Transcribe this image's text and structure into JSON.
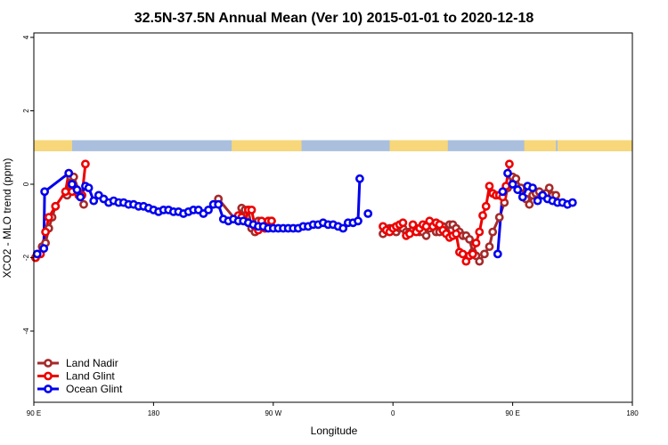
{
  "chart_data": {
    "type": "line",
    "title": "32.5N-37.5N Annual Mean (Ver 10)   2015-01-01 to 2020-12-18",
    "xlabel": "Longitude",
    "ylabel": "XCO2 - MLO trend (ppm)",
    "xlim": [
      90,
      450
    ],
    "ylim": [
      -6,
      4
    ],
    "x_ticks": [
      {
        "value": 90,
        "label": "90 E"
      },
      {
        "value": 162,
        "label": "180"
      },
      {
        "value": 234,
        "label": "90 W"
      },
      {
        "value": 306,
        "label": "0"
      },
      {
        "value": 378,
        "label": "90 E"
      },
      {
        "value": 450,
        "label": "180"
      }
    ],
    "y_ticks": [
      {
        "value": 4,
        "label": "4"
      },
      {
        "value": 2,
        "label": "2"
      },
      {
        "value": 0,
        "label": "0"
      },
      {
        "value": -2,
        "label": "-2"
      },
      {
        "value": -4,
        "label": "-4"
      }
    ],
    "grid": false,
    "legend_position": "bottom-left",
    "land_mask_band": {
      "y_range": [
        0.9,
        1.2
      ],
      "ocean_color": "#a9bfdd",
      "land_color": "#f7d77a",
      "land_segments": [
        [
          90,
          113
        ],
        [
          209,
          251
        ],
        [
          304,
          339
        ],
        [
          385,
          404
        ],
        [
          405,
          450
        ]
      ]
    },
    "series": [
      {
        "name": "Land Nadir",
        "color": "#a52a2a",
        "x": [
          91,
          93,
          95,
          97,
          99,
          101,
          103,
          110,
          112,
          114,
          120,
          201,
          211,
          213,
          215,
          217,
          219,
          221,
          223,
          225,
          227,
          229,
          233,
          235,
          239,
          242,
          245,
          247,
          249,
          251,
          253,
          255,
          257,
          259,
          261,
          263,
          265,
          267,
          269,
          271,
          273,
          275,
          277,
          279,
          281,
          283,
          285,
          287,
          289,
          290,
          292,
          294,
          296,
          298,
          300,
          302,
          304,
          306,
          308,
          310,
          312,
          314,
          316,
          318,
          320,
          322,
          324,
          326,
          328,
          330,
          332,
          334,
          336,
          338,
          340,
          342,
          344,
          346,
          348,
          350,
          352,
          354,
          356,
          358,
          361,
          364,
          366,
          370,
          373,
          375,
          378,
          380,
          383,
          386,
          388,
          390,
          392,
          394,
          396,
          398,
          400,
          402,
          404
        ],
        "y": [
          -2.0,
          -1.9,
          -1.7,
          -1.6,
          -1.2,
          -0.9,
          -0.6,
          -0.3,
          0.2,
          0.2,
          -0.55,
          -0.4,
          -0.95,
          -1.0,
          -0.65,
          -0.7,
          -0.7,
          -1.2,
          -1.3,
          -1.0,
          -1.1,
          -1.2,
          -1.0,
          -1.0,
          -1.1,
          -1.2,
          -1.1,
          -1.15,
          -1.2,
          -1.3,
          -1.25,
          -1.2,
          -1.3,
          -1.3,
          -1.2,
          -1.3,
          -1.3,
          -1.2,
          -1.3,
          -1.2,
          -1.2,
          -1.2,
          -1.3,
          -1.3,
          -1.2,
          -1.3,
          -1.3,
          -1.4,
          -1.25,
          -1.2,
          -1.2,
          -1.3,
          -1.3,
          -1.3,
          -1.35,
          -1.25,
          -1.2,
          -1.2,
          -1.3,
          -1.2,
          -1.2,
          -1.3,
          -1.3,
          -1.25,
          -1.2,
          -1.3,
          -1.3,
          -1.4,
          -1.2,
          -1.1,
          -1.3,
          -1.3,
          -1.15,
          -1.3,
          -1.1,
          -1.1,
          -1.2,
          -1.3,
          -1.4,
          -1.4,
          -1.5,
          -1.85,
          -1.95,
          -2.1,
          -1.9,
          -1.7,
          -1.3,
          -0.9,
          -0.5,
          -0.1,
          0.2,
          0.15,
          -0.1,
          -0.4,
          -0.55,
          -0.3,
          -0.25,
          -0.2,
          -0.3,
          -0.25,
          -0.1,
          -0.3,
          -0.3
        ],
        "draw_count": 11
      },
      {
        "name": "Land Glint",
        "color": "#ee0000",
        "x": [
          91,
          94,
          97,
          99,
          101,
          103,
          107,
          109,
          111,
          113,
          117,
          119,
          121,
          208,
          210,
          212,
          214,
          216,
          218,
          220,
          222,
          224,
          226,
          228,
          230,
          232,
          300,
          302,
          304,
          306,
          308,
          310,
          312,
          314,
          316,
          318,
          320,
          322,
          324,
          326,
          328,
          330,
          332,
          334,
          336,
          338,
          340,
          342,
          344,
          346,
          348,
          350,
          352,
          354,
          356,
          358,
          360,
          362,
          364,
          366,
          368,
          370,
          372,
          374,
          376,
          378,
          380,
          382,
          384,
          386,
          388,
          390,
          392,
          394,
          396,
          398,
          400,
          402,
          404
        ],
        "y": [
          -2.0,
          -1.9,
          -1.3,
          -0.9,
          -0.9,
          -0.6,
          -0.6,
          -0.2,
          0.3,
          -0.2,
          -0.3,
          -0.3,
          0.55,
          -0.9,
          -0.9,
          -1.0,
          -0.75,
          -0.7,
          -0.8,
          -1.1,
          -1.2,
          -1.15,
          -1.2,
          -1.05,
          -1.0,
          -1.1,
          -1.15,
          -1.2,
          -1.15,
          -1.25,
          -1.2,
          -1.15,
          -1.2,
          -1.1,
          -1.05,
          -1.25,
          -1.3,
          -1.4,
          -1.2,
          -1.3,
          -1.2,
          -1.0,
          -1.0,
          -1.1,
          -1.15,
          -1.2,
          -1.1,
          -1.2,
          -1.3,
          -1.4,
          -1.45,
          -1.4,
          -1.35,
          -1.55,
          -1.9,
          -1.9,
          -2.1,
          -2.0,
          -1.9,
          -1.4,
          -0.9,
          -0.6,
          -0.05,
          -0.2,
          0.1,
          -0.2,
          -0.4,
          -0.3,
          -0.3,
          -0.1,
          0.55,
          -0.3,
          -0.3,
          -0.2,
          -0.3,
          -0.2,
          -0.2,
          -0.3,
          -0.3
        ],
        "pts": [
          [
            91,
            -2.0
          ],
          [
            94,
            -1.9
          ],
          [
            97,
            -1.3
          ],
          [
            99,
            -0.9
          ],
          [
            103,
            -0.6
          ],
          [
            109,
            -0.2
          ],
          [
            111,
            0.3
          ],
          [
            113,
            -0.2
          ],
          [
            117,
            -0.3
          ],
          [
            119,
            -0.3
          ],
          [
            121,
            0.55
          ]
        ],
        "pts2": [
          [
            213,
            -0.85
          ],
          [
            215,
            -0.9
          ],
          [
            217,
            -1.0
          ],
          [
            219,
            -0.7
          ],
          [
            221,
            -0.7
          ],
          [
            223,
            -1.15
          ],
          [
            225,
            -1.25
          ],
          [
            227,
            -1.0
          ],
          [
            229,
            -1.2
          ],
          [
            231,
            -1.0
          ],
          [
            233,
            -1.0
          ]
        ],
        "pts3": [
          [
            300,
            -1.15
          ],
          [
            302,
            -1.25
          ],
          [
            304,
            -1.3
          ],
          [
            306,
            -1.2
          ],
          [
            308,
            -1.15
          ],
          [
            310,
            -1.1
          ],
          [
            312,
            -1.05
          ],
          [
            314,
            -1.4
          ],
          [
            316,
            -1.35
          ],
          [
            318,
            -1.1
          ],
          [
            320,
            -1.3
          ],
          [
            322,
            -1.2
          ],
          [
            324,
            -1.1
          ],
          [
            326,
            -1.15
          ],
          [
            328,
            -1.0
          ],
          [
            330,
            -1.15
          ],
          [
            332,
            -1.05
          ],
          [
            334,
            -1.1
          ],
          [
            336,
            -1.25
          ],
          [
            338,
            -1.35
          ],
          [
            340,
            -1.45
          ],
          [
            342,
            -1.4
          ],
          [
            344,
            -1.35
          ],
          [
            346,
            -1.85
          ],
          [
            348,
            -1.9
          ],
          [
            350,
            -2.1
          ],
          [
            352,
            -1.95
          ],
          [
            354,
            -1.9
          ],
          [
            356,
            -1.6
          ],
          [
            358,
            -1.3
          ],
          [
            360,
            -0.85
          ],
          [
            362,
            -0.6
          ],
          [
            364,
            -0.05
          ],
          [
            366,
            -0.25
          ],
          [
            368,
            -0.3
          ],
          [
            370,
            -0.3
          ],
          [
            372,
            -0.35
          ],
          [
            374,
            -0.05
          ],
          [
            376,
            0.55
          ]
        ]
      },
      {
        "name": "Ocean Glint",
        "color": "#0000ee",
        "pts": [
          [
            92,
            -1.9
          ],
          [
            96,
            -1.75
          ],
          [
            96.5,
            -0.2
          ],
          [
            111,
            0.3
          ],
          [
            113,
            0.0
          ],
          [
            116,
            -0.15
          ],
          [
            118,
            -0.35
          ],
          [
            121,
            -0.05
          ],
          [
            123,
            -0.1
          ],
          [
            126,
            -0.45
          ],
          [
            129,
            -0.3
          ],
          [
            132,
            -0.4
          ],
          [
            135,
            -0.5
          ],
          [
            138,
            -0.45
          ],
          [
            141,
            -0.5
          ],
          [
            144,
            -0.5
          ],
          [
            147,
            -0.55
          ],
          [
            150,
            -0.55
          ],
          [
            153,
            -0.6
          ],
          [
            156,
            -0.6
          ],
          [
            159,
            -0.65
          ],
          [
            162,
            -0.7
          ],
          [
            165,
            -0.75
          ],
          [
            168,
            -0.7
          ],
          [
            171,
            -0.7
          ],
          [
            174,
            -0.75
          ],
          [
            177,
            -0.75
          ],
          [
            180,
            -0.8
          ],
          [
            183,
            -0.75
          ],
          [
            186,
            -0.7
          ],
          [
            189,
            -0.7
          ],
          [
            192,
            -0.8
          ],
          [
            195,
            -0.7
          ],
          [
            198,
            -0.55
          ],
          [
            201,
            -0.55
          ],
          [
            204,
            -0.95
          ],
          [
            207,
            -1.0
          ],
          [
            210,
            -0.95
          ],
          [
            213,
            -1.0
          ],
          [
            216,
            -1.0
          ],
          [
            219,
            -1.05
          ],
          [
            222,
            -1.1
          ],
          [
            225,
            -1.15
          ],
          [
            228,
            -1.15
          ],
          [
            231,
            -1.2
          ],
          [
            234,
            -1.2
          ],
          [
            237,
            -1.2
          ],
          [
            240,
            -1.2
          ],
          [
            243,
            -1.2
          ],
          [
            246,
            -1.2
          ],
          [
            249,
            -1.2
          ],
          [
            252,
            -1.15
          ],
          [
            255,
            -1.15
          ],
          [
            258,
            -1.1
          ],
          [
            261,
            -1.1
          ],
          [
            264,
            -1.05
          ],
          [
            267,
            -1.1
          ],
          [
            270,
            -1.1
          ],
          [
            273,
            -1.15
          ],
          [
            276,
            -1.2
          ],
          [
            279,
            -1.05
          ],
          [
            282,
            -1.05
          ],
          [
            285,
            -1.0
          ],
          [
            286,
            0.15
          ]
        ],
        "pts2": [
          [
            291,
            -0.8
          ]
        ],
        "pts3": [
          [
            369,
            -1.9
          ],
          [
            372,
            -0.2
          ]
        ],
        "pts4": [
          [
            375,
            0.3
          ],
          [
            378,
            0.0
          ],
          [
            381,
            -0.15
          ],
          [
            384,
            -0.35
          ],
          [
            387,
            -0.05
          ],
          [
            390,
            -0.1
          ],
          [
            393,
            -0.45
          ],
          [
            396,
            -0.3
          ],
          [
            399,
            -0.4
          ],
          [
            402,
            -0.45
          ],
          [
            405,
            -0.5
          ],
          [
            408,
            -0.5
          ],
          [
            411,
            -0.55
          ],
          [
            414,
            -0.5
          ]
        ]
      }
    ],
    "legend": [
      "Land Nadir",
      "Land Glint",
      "Ocean Glint"
    ]
  }
}
